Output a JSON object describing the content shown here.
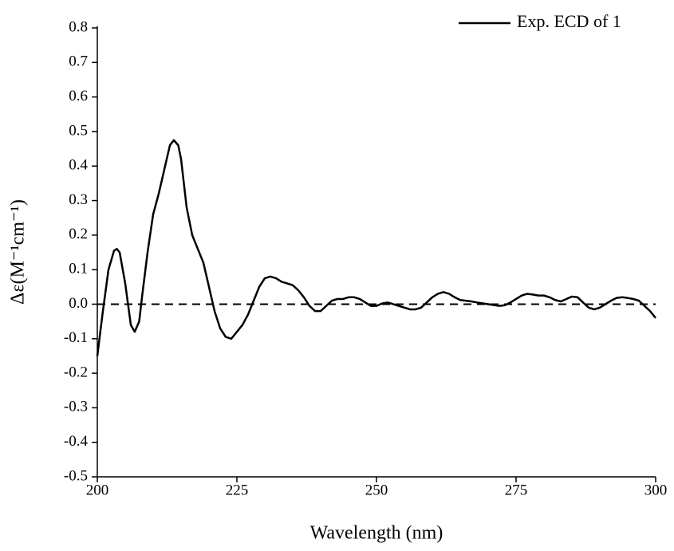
{
  "chart_data": {
    "type": "line",
    "xlabel": "Wavelength (nm)",
    "ylabel": "Δε(M⁻¹cm⁻¹)",
    "x": [
      200,
      201,
      202,
      203,
      203.5,
      204,
      205,
      206,
      206.7,
      207.5,
      208,
      209,
      210,
      211,
      212,
      213,
      213.7,
      214.5,
      215,
      216,
      217,
      218,
      219,
      220,
      221,
      222,
      223,
      224,
      225,
      226,
      227,
      228,
      229,
      230,
      231,
      232,
      233,
      234,
      235,
      236,
      237,
      238,
      239,
      240,
      241,
      242,
      243,
      244,
      245,
      246,
      247,
      248,
      249,
      250,
      251,
      252,
      253,
      254,
      255,
      256,
      257,
      258,
      259,
      260,
      261,
      262,
      263,
      264,
      265,
      266,
      267,
      268,
      270,
      272,
      273,
      274,
      275,
      276,
      277,
      278,
      279,
      280,
      281,
      282,
      283,
      284,
      285,
      286,
      287,
      288,
      289,
      290,
      291,
      292,
      293,
      294,
      295,
      296,
      297,
      298,
      299,
      300
    ],
    "series": [
      {
        "name": "Exp. ECD of 1",
        "color": "#000000",
        "values": [
          -0.15,
          -0.02,
          0.1,
          0.155,
          0.16,
          0.15,
          0.06,
          -0.06,
          -0.08,
          -0.05,
          0.02,
          0.15,
          0.26,
          0.32,
          0.39,
          0.46,
          0.475,
          0.46,
          0.42,
          0.28,
          0.2,
          0.16,
          0.12,
          0.05,
          -0.02,
          -0.07,
          -0.095,
          -0.1,
          -0.08,
          -0.06,
          -0.03,
          0.01,
          0.05,
          0.075,
          0.08,
          0.075,
          0.065,
          0.06,
          0.055,
          0.04,
          0.02,
          -0.005,
          -0.02,
          -0.02,
          -0.005,
          0.01,
          0.015,
          0.015,
          0.02,
          0.02,
          0.015,
          0.005,
          -0.005,
          -0.005,
          0.002,
          0.005,
          0.0,
          -0.005,
          -0.01,
          -0.015,
          -0.015,
          -0.01,
          0.005,
          0.02,
          0.03,
          0.035,
          0.03,
          0.02,
          0.012,
          0.01,
          0.008,
          0.005,
          0.0,
          -0.005,
          -0.003,
          0.005,
          0.015,
          0.025,
          0.03,
          0.028,
          0.025,
          0.025,
          0.02,
          0.012,
          0.008,
          0.015,
          0.022,
          0.02,
          0.005,
          -0.01,
          -0.015,
          -0.01,
          0.0,
          0.01,
          0.018,
          0.02,
          0.018,
          0.015,
          0.01,
          -0.005,
          -0.02,
          -0.04
        ]
      }
    ],
    "reference_line": 0,
    "xlim": [
      200,
      300
    ],
    "xticks": [
      200,
      225,
      250,
      275,
      300
    ],
    "ylim": [
      -0.5,
      0.8
    ],
    "yticks": [
      -0.5,
      -0.4,
      -0.3,
      -0.2,
      -0.1,
      {
        "value": 0,
        "label": "0.0"
      },
      0.1,
      0.2,
      0.3,
      0.4,
      0.5,
      0.6,
      0.7,
      0.8
    ],
    "legend": "upper right"
  }
}
